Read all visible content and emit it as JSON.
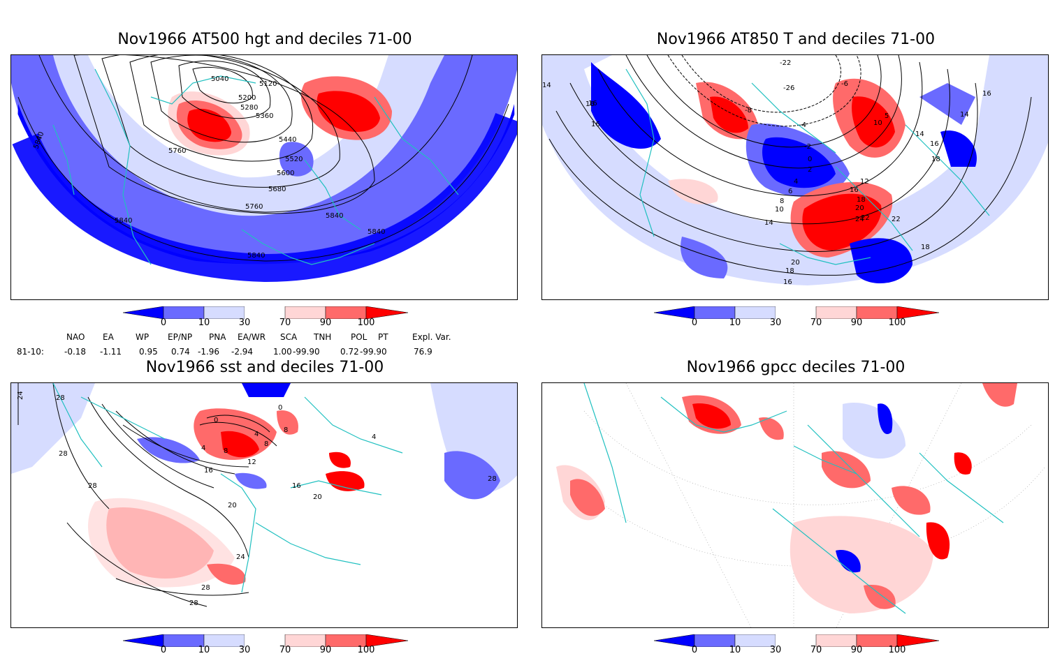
{
  "panels": [
    {
      "title": "Nov1966 AT500 hgt and deciles 71-00",
      "contour_labels": [
        "5040",
        "5120",
        "5200",
        "5280",
        "5360",
        "5440",
        "5520",
        "5600",
        "5680",
        "5760",
        "5760",
        "5840",
        "5840",
        "5840",
        "5840",
        "5840"
      ]
    },
    {
      "title": "Nov1966 AT850 T and deciles 71-00",
      "contour_labels": [
        "-22",
        "-26",
        "-8",
        "-4",
        "-2",
        "0",
        "2",
        "4",
        "6",
        "8",
        "10",
        "14",
        "16",
        "16",
        "16",
        "18",
        "20",
        "22",
        "24",
        "20",
        "18",
        "16",
        "12",
        "10",
        "5",
        "14",
        "16",
        "18",
        "14",
        "16",
        "-6",
        "22",
        "18",
        "16",
        "14"
      ]
    },
    {
      "title": "Nov1966 sst and deciles 71-00",
      "contour_labels": [
        "24",
        "28",
        "28",
        "28",
        "20",
        "24",
        "28",
        "28",
        "4",
        "8",
        "12",
        "16",
        "0",
        "4",
        "8",
        "16",
        "20",
        "8",
        "0",
        "4",
        "28"
      ]
    },
    {
      "title": "Nov1966 gpcc deciles 71-00",
      "contour_labels": []
    }
  ],
  "colorbar": {
    "ticks": [
      "0",
      "10",
      "30",
      "70",
      "90",
      "100"
    ],
    "colors": [
      "#0000ff",
      "#6a6aff",
      "#d6dcff",
      "#ffd6d6",
      "#ff6a6a",
      "#ff0000"
    ]
  },
  "indices": {
    "headers": [
      "NAO",
      "EA",
      "WP",
      "EP/NP",
      "PNA",
      "EA/WR",
      "SCA",
      "TNH",
      "POL",
      "PT",
      "Expl. Var."
    ],
    "row_label": "81-10:",
    "values": [
      "-0.18",
      "-1.11",
      "0.95",
      "0.74",
      "-1.96",
      "-2.94",
      "1.00",
      "-99.90",
      "0.72",
      "-99.90",
      "76.9"
    ]
  },
  "colors": {
    "coast": "#20c0c0",
    "blue_dark": "#0000ff",
    "blue_mid": "#6a6aff",
    "blue_light": "#d6dcff",
    "red_light": "#ffd6d6",
    "red_mid": "#ff6a6a",
    "red_dark": "#ff0000"
  }
}
